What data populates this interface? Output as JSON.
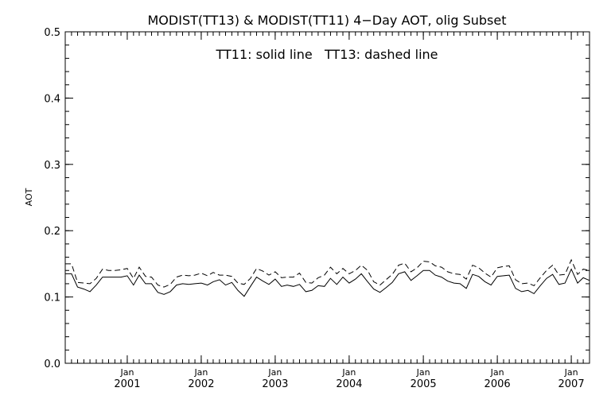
{
  "chart_data": {
    "type": "line",
    "title": "MODIST(TT13) & MODIST(TT11) 4−Day AOT, olig Subset",
    "annotation": "TT11: solid line   TT13: dashed line",
    "xlabel": "",
    "ylabel": "AOT",
    "xlim": [
      "2000-03-01",
      "2007-04-01"
    ],
    "ylim": [
      0.0,
      0.5
    ],
    "y_ticks": [
      "0.0",
      "0.1",
      "0.2",
      "0.3",
      "0.4",
      "0.5"
    ],
    "x_ticks": [
      {
        "month": "Jan",
        "year": "2001",
        "date": "2001-01-01"
      },
      {
        "month": "Jan",
        "year": "2002",
        "date": "2002-01-01"
      },
      {
        "month": "Jan",
        "year": "2003",
        "date": "2003-01-01"
      },
      {
        "month": "Jan",
        "year": "2004",
        "date": "2004-01-01"
      },
      {
        "month": "Jan",
        "year": "2005",
        "date": "2005-01-01"
      },
      {
        "month": "Jan",
        "year": "2006",
        "date": "2006-01-01"
      },
      {
        "month": "Jan",
        "year": "2007",
        "date": "2007-01-01"
      }
    ],
    "grid": false,
    "legend": "top-center",
    "x": [
      "2000-03-01",
      "2000-04-01",
      "2000-05-01",
      "2000-06-01",
      "2000-07-01",
      "2000-08-01",
      "2000-09-01",
      "2000-10-01",
      "2000-11-01",
      "2000-12-01",
      "2001-01-01",
      "2001-02-01",
      "2001-03-01",
      "2001-04-01",
      "2001-05-01",
      "2001-06-01",
      "2001-07-01",
      "2001-08-01",
      "2001-09-01",
      "2001-10-01",
      "2001-11-01",
      "2001-12-01",
      "2002-01-01",
      "2002-02-01",
      "2002-03-01",
      "2002-04-01",
      "2002-05-01",
      "2002-06-01",
      "2002-07-01",
      "2002-08-01",
      "2002-09-01",
      "2002-10-01",
      "2002-11-01",
      "2002-12-01",
      "2003-01-01",
      "2003-02-01",
      "2003-03-01",
      "2003-04-01",
      "2003-05-01",
      "2003-06-01",
      "2003-07-01",
      "2003-08-01",
      "2003-09-01",
      "2003-10-01",
      "2003-11-01",
      "2003-12-01",
      "2004-01-01",
      "2004-02-01",
      "2004-03-01",
      "2004-04-01",
      "2004-05-01",
      "2004-06-01",
      "2004-07-01",
      "2004-08-01",
      "2004-09-01",
      "2004-10-01",
      "2004-11-01",
      "2004-12-01",
      "2005-01-01",
      "2005-02-01",
      "2005-03-01",
      "2005-04-01",
      "2005-05-01",
      "2005-06-01",
      "2005-07-01",
      "2005-08-01",
      "2005-09-01",
      "2005-10-01",
      "2005-11-01",
      "2005-12-01",
      "2006-01-01",
      "2006-02-01",
      "2006-03-01",
      "2006-04-01",
      "2006-05-01",
      "2006-06-01",
      "2006-07-01",
      "2006-08-01",
      "2006-09-01",
      "2006-10-01",
      "2006-11-01",
      "2006-12-01",
      "2007-01-01",
      "2007-02-01",
      "2007-03-01",
      "2007-04-01"
    ],
    "series": [
      {
        "name": "TT11",
        "style": "solid",
        "color": "#000000",
        "values": [
          0.135,
          0.135,
          0.115,
          0.112,
          0.108,
          0.118,
          0.13,
          0.13,
          0.13,
          0.13,
          0.132,
          0.118,
          0.133,
          0.12,
          0.12,
          0.107,
          0.104,
          0.108,
          0.118,
          0.12,
          0.119,
          0.12,
          0.121,
          0.118,
          0.123,
          0.126,
          0.118,
          0.122,
          0.11,
          0.101,
          0.116,
          0.13,
          0.124,
          0.119,
          0.127,
          0.116,
          0.118,
          0.116,
          0.119,
          0.108,
          0.11,
          0.117,
          0.116,
          0.128,
          0.119,
          0.13,
          0.121,
          0.127,
          0.135,
          0.123,
          0.112,
          0.107,
          0.114,
          0.122,
          0.135,
          0.138,
          0.125,
          0.132,
          0.14,
          0.14,
          0.133,
          0.13,
          0.124,
          0.121,
          0.12,
          0.113,
          0.134,
          0.131,
          0.123,
          0.118,
          0.131,
          0.132,
          0.133,
          0.113,
          0.108,
          0.11,
          0.105,
          0.117,
          0.128,
          0.134,
          0.119,
          0.121,
          0.142,
          0.121,
          0.129,
          0.125
        ]
      },
      {
        "name": "TT13",
        "style": "dashed",
        "color": "#000000",
        "values": [
          0.15,
          0.15,
          0.122,
          0.121,
          0.12,
          0.128,
          0.142,
          0.14,
          0.14,
          0.141,
          0.143,
          0.128,
          0.145,
          0.131,
          0.13,
          0.118,
          0.115,
          0.119,
          0.13,
          0.133,
          0.132,
          0.133,
          0.136,
          0.132,
          0.137,
          0.133,
          0.133,
          0.131,
          0.121,
          0.119,
          0.128,
          0.143,
          0.139,
          0.133,
          0.138,
          0.129,
          0.13,
          0.13,
          0.136,
          0.122,
          0.121,
          0.129,
          0.133,
          0.145,
          0.135,
          0.143,
          0.135,
          0.14,
          0.148,
          0.14,
          0.123,
          0.118,
          0.126,
          0.134,
          0.148,
          0.151,
          0.138,
          0.144,
          0.154,
          0.153,
          0.147,
          0.145,
          0.138,
          0.135,
          0.134,
          0.127,
          0.148,
          0.144,
          0.136,
          0.13,
          0.144,
          0.146,
          0.147,
          0.126,
          0.12,
          0.121,
          0.117,
          0.129,
          0.14,
          0.148,
          0.133,
          0.134,
          0.156,
          0.134,
          0.142,
          0.14
        ]
      }
    ]
  }
}
